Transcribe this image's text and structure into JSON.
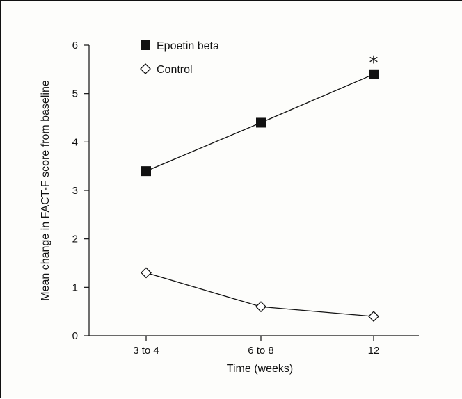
{
  "chart_data": {
    "type": "line",
    "categories": [
      "3 to 4",
      "6 to 8",
      "12"
    ],
    "series": [
      {
        "name": "Epoetin beta",
        "values": [
          3.4,
          4.4,
          5.4
        ],
        "marker": "filled-square",
        "color": "#111111"
      },
      {
        "name": "Control",
        "values": [
          1.3,
          0.6,
          0.4
        ],
        "marker": "open-diamond",
        "color": "#111111"
      }
    ],
    "xlabel": "Time (weeks)",
    "ylabel": "Mean change in FACT-F score from baseline",
    "ylim": [
      0,
      6
    ],
    "yticks": [
      0,
      1,
      2,
      3,
      4,
      5,
      6
    ],
    "grid": false,
    "legend": "top-left",
    "annotations": [
      {
        "text": "*",
        "category": "12",
        "series": "Epoetin beta"
      }
    ]
  }
}
